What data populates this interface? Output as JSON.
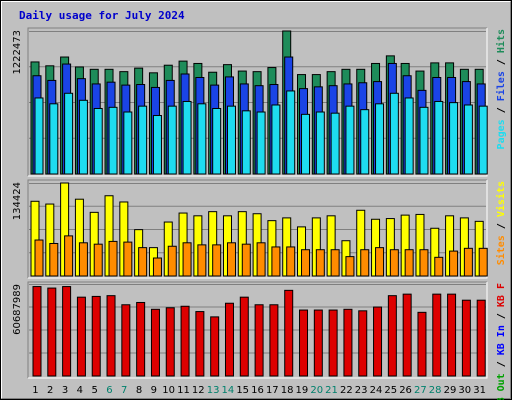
{
  "chart_data": {
    "type": "bar",
    "title": "Daily usage for July 2024",
    "colors": {
      "background": "#C0C0C0",
      "frame": "#000000",
      "title": "#0000CC",
      "hits": "#1E8C5A",
      "files": "#1A44E6",
      "pages": "#1EDCF0",
      "visits": "#FFFF00",
      "sites": "#FF8C00",
      "kbin": "#0000FF",
      "kbout": "#00A000",
      "kbf": "#DD0000",
      "weekend_day": "#00806C",
      "weekday_day": "#000000"
    },
    "days": [
      "1",
      "2",
      "3",
      "4",
      "5",
      "6",
      "7",
      "8",
      "9",
      "10",
      "11",
      "12",
      "13",
      "14",
      "15",
      "16",
      "17",
      "18",
      "19",
      "20",
      "21",
      "22",
      "23",
      "24",
      "25",
      "26",
      "27",
      "28",
      "29",
      "30",
      "31"
    ],
    "weekend_days": [
      "6",
      "7",
      "13",
      "14",
      "20",
      "21",
      "27",
      "28"
    ],
    "panels": [
      {
        "id": "hits",
        "max_label": "1222473",
        "ymax": 1222473,
        "legend": [
          {
            "text": "Hits",
            "color": "#1E8C5A"
          },
          {
            "text": "Files",
            "color": "#1A44E6"
          },
          {
            "text": "Pages",
            "color": "#1EDCF0"
          }
        ],
        "series": [
          {
            "name": "Hits",
            "values": [
              958000,
              925000,
              1000000,
              915000,
              895000,
              895000,
              875000,
              905000,
              865000,
              930000,
              965000,
              945000,
              870000,
              935000,
              880000,
              875000,
              910000,
              1222473,
              850000,
              850000,
              875000,
              895000,
              895000,
              945000,
              1010000,
              945000,
              880000,
              950000,
              950000,
              895000,
              895000
            ]
          },
          {
            "name": "Files",
            "values": [
              840000,
              800000,
              940000,
              815000,
              770000,
              785000,
              760000,
              765000,
              740000,
              800000,
              855000,
              825000,
              760000,
              830000,
              770000,
              755000,
              765000,
              1000000,
              730000,
              745000,
              755000,
              770000,
              780000,
              790000,
              945000,
              840000,
              715000,
              825000,
              825000,
              790000,
              770000
            ]
          },
          {
            "name": "Pages",
            "values": [
              650000,
              600000,
              690000,
              630000,
              560000,
              570000,
              530000,
              580000,
              500000,
              580000,
              620000,
              600000,
              560000,
              580000,
              540000,
              530000,
              590000,
              710000,
              510000,
              530000,
              520000,
              580000,
              550000,
              600000,
              690000,
              650000,
              570000,
              620000,
              610000,
              590000,
              580000
            ]
          }
        ]
      },
      {
        "id": "visits",
        "max_label": "134424",
        "ymax": 134424,
        "legend": [
          {
            "text": "Visits",
            "color": "#FFFF00"
          },
          {
            "text": "Sites",
            "color": "#FF8C00"
          }
        ],
        "series": [
          {
            "name": "Visits",
            "values": [
              108000,
              104000,
              134424,
              111000,
              92000,
              116000,
              107000,
              67000,
              41000,
              78000,
              91000,
              87000,
              93000,
              87000,
              93000,
              90000,
              80000,
              84000,
              71000,
              84000,
              87000,
              51000,
              95000,
              82000,
              83000,
              88000,
              89000,
              69000,
              87000,
              84000,
              79000
            ]
          },
          {
            "name": "Sites",
            "values": [
              52000,
              47000,
              58000,
              48000,
              46000,
              50000,
              49000,
              41000,
              26000,
              43000,
              48000,
              45000,
              45000,
              48000,
              46000,
              48000,
              42000,
              42000,
              38000,
              38000,
              38000,
              28000,
              38000,
              41000,
              38000,
              38000,
              38000,
              27000,
              36000,
              40000,
              40000
            ]
          }
        ]
      },
      {
        "id": "kb",
        "max_label": "60687989",
        "ymax": 60687989,
        "legend": [
          {
            "text": "KB F",
            "color": "#DD0000"
          },
          {
            "text": "KB In",
            "color": "#0000FF"
          },
          {
            "text": "KB Out",
            "color": "#00A000"
          }
        ],
        "series": [
          {
            "name": "KB F",
            "values": [
              59000000,
              58000000,
              59000000,
              52000000,
              52500000,
              53000000,
              47000000,
              48500000,
              44000000,
              45000000,
              46000000,
              42500000,
              39000000,
              48000000,
              52000000,
              47000000,
              47000000,
              56500000,
              43500000,
              43500000,
              43500000,
              44000000,
              43000000,
              45500000,
              53000000,
              54000000,
              42000000,
              54000000,
              54000000,
              50000000,
              50000000
            ]
          }
        ]
      }
    ]
  }
}
